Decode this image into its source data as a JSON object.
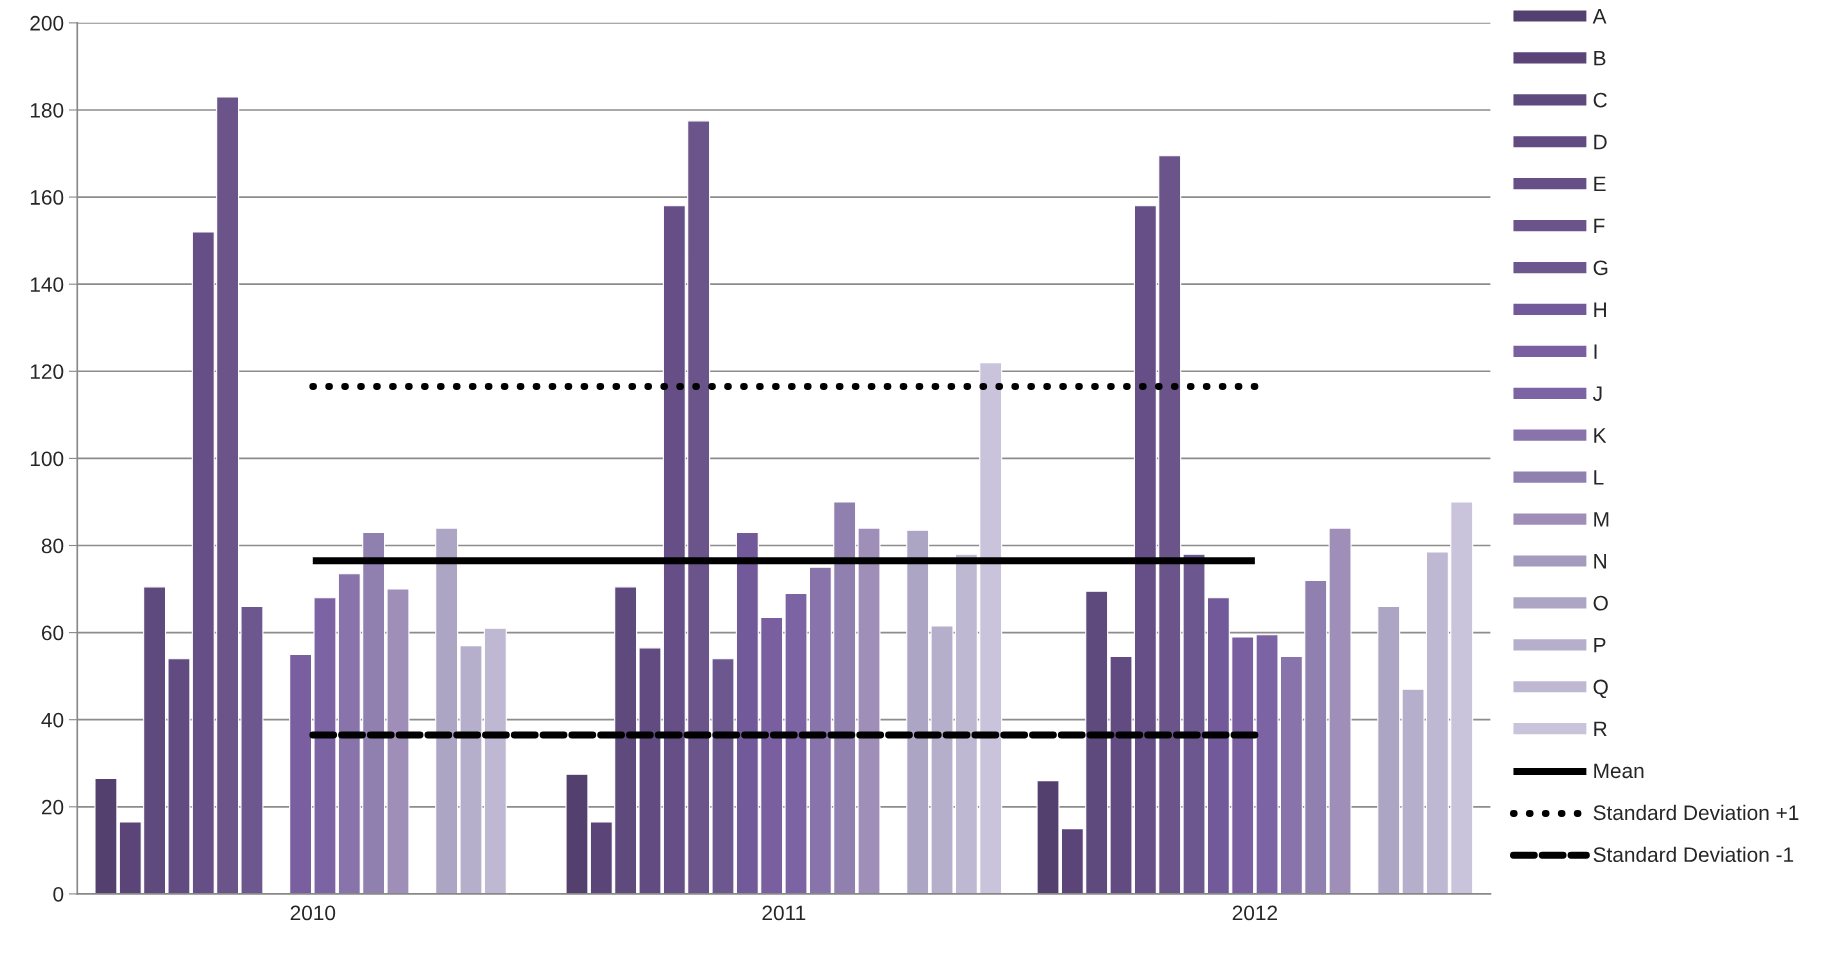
{
  "chart_data": {
    "type": "bar",
    "categories": [
      "2010",
      "2011",
      "2012"
    ],
    "ylim": [
      0,
      200
    ],
    "yticks": [
      0,
      20,
      40,
      60,
      80,
      100,
      120,
      140,
      160,
      180,
      200
    ],
    "grid": "y",
    "legend": "right",
    "series": [
      {
        "name": "A",
        "color": "#54406e",
        "values": [
          26.5,
          27.5,
          26
        ]
      },
      {
        "name": "B",
        "color": "#5a4478",
        "values": [
          16.5,
          16.5,
          15
        ]
      },
      {
        "name": "C",
        "color": "#5e4a7c",
        "values": [
          70.5,
          70.5,
          69.5
        ]
      },
      {
        "name": "D",
        "color": "#614b80",
        "values": [
          54,
          56.5,
          54.5
        ]
      },
      {
        "name": "E",
        "color": "#654f86",
        "values": [
          152,
          158,
          158
        ]
      },
      {
        "name": "F",
        "color": "#6a5489",
        "values": [
          183,
          177.5,
          169.5
        ]
      },
      {
        "name": "G",
        "color": "#6c578f",
        "values": [
          66,
          54,
          78
        ]
      },
      {
        "name": "H",
        "color": "#72599a",
        "values": [
          null,
          83,
          68
        ]
      },
      {
        "name": "I",
        "color": "#7a5fa0",
        "values": [
          55,
          63.5,
          59
        ]
      },
      {
        "name": "J",
        "color": "#7c63a3",
        "values": [
          68,
          69,
          59.5
        ]
      },
      {
        "name": "K",
        "color": "#8873ab",
        "values": [
          73.5,
          75,
          54.5
        ]
      },
      {
        "name": "L",
        "color": "#9080b0",
        "values": [
          83,
          90,
          72
        ]
      },
      {
        "name": "M",
        "color": "#9f8fb8",
        "values": [
          70,
          84,
          84
        ]
      },
      {
        "name": "N",
        "color": "#a59bbd",
        "values": [
          null,
          null,
          null
        ]
      },
      {
        "name": "O",
        "color": "#ada5c4",
        "values": [
          84,
          83.5,
          66
        ]
      },
      {
        "name": "P",
        "color": "#b5afcb",
        "values": [
          57,
          61.5,
          47
        ]
      },
      {
        "name": "Q",
        "color": "#bfb8d3",
        "values": [
          61,
          78,
          78.5
        ]
      },
      {
        "name": "R",
        "color": "#cac3dc",
        "values": [
          null,
          122,
          90
        ]
      },
      {
        "name": "Mean",
        "type": "line",
        "line_style": "solid",
        "color": "#000000",
        "values": [
          76.5,
          76.5,
          76.5
        ]
      },
      {
        "name": "Standard Deviation +1",
        "type": "line",
        "line_style": "dotted",
        "color": "#000000",
        "values": [
          116.5,
          116.5,
          116.5
        ]
      },
      {
        "name": "Standard Deviation -1",
        "type": "line",
        "line_style": "dashed",
        "color": "#000000",
        "values": [
          36.5,
          36.5,
          36.5
        ]
      }
    ]
  }
}
